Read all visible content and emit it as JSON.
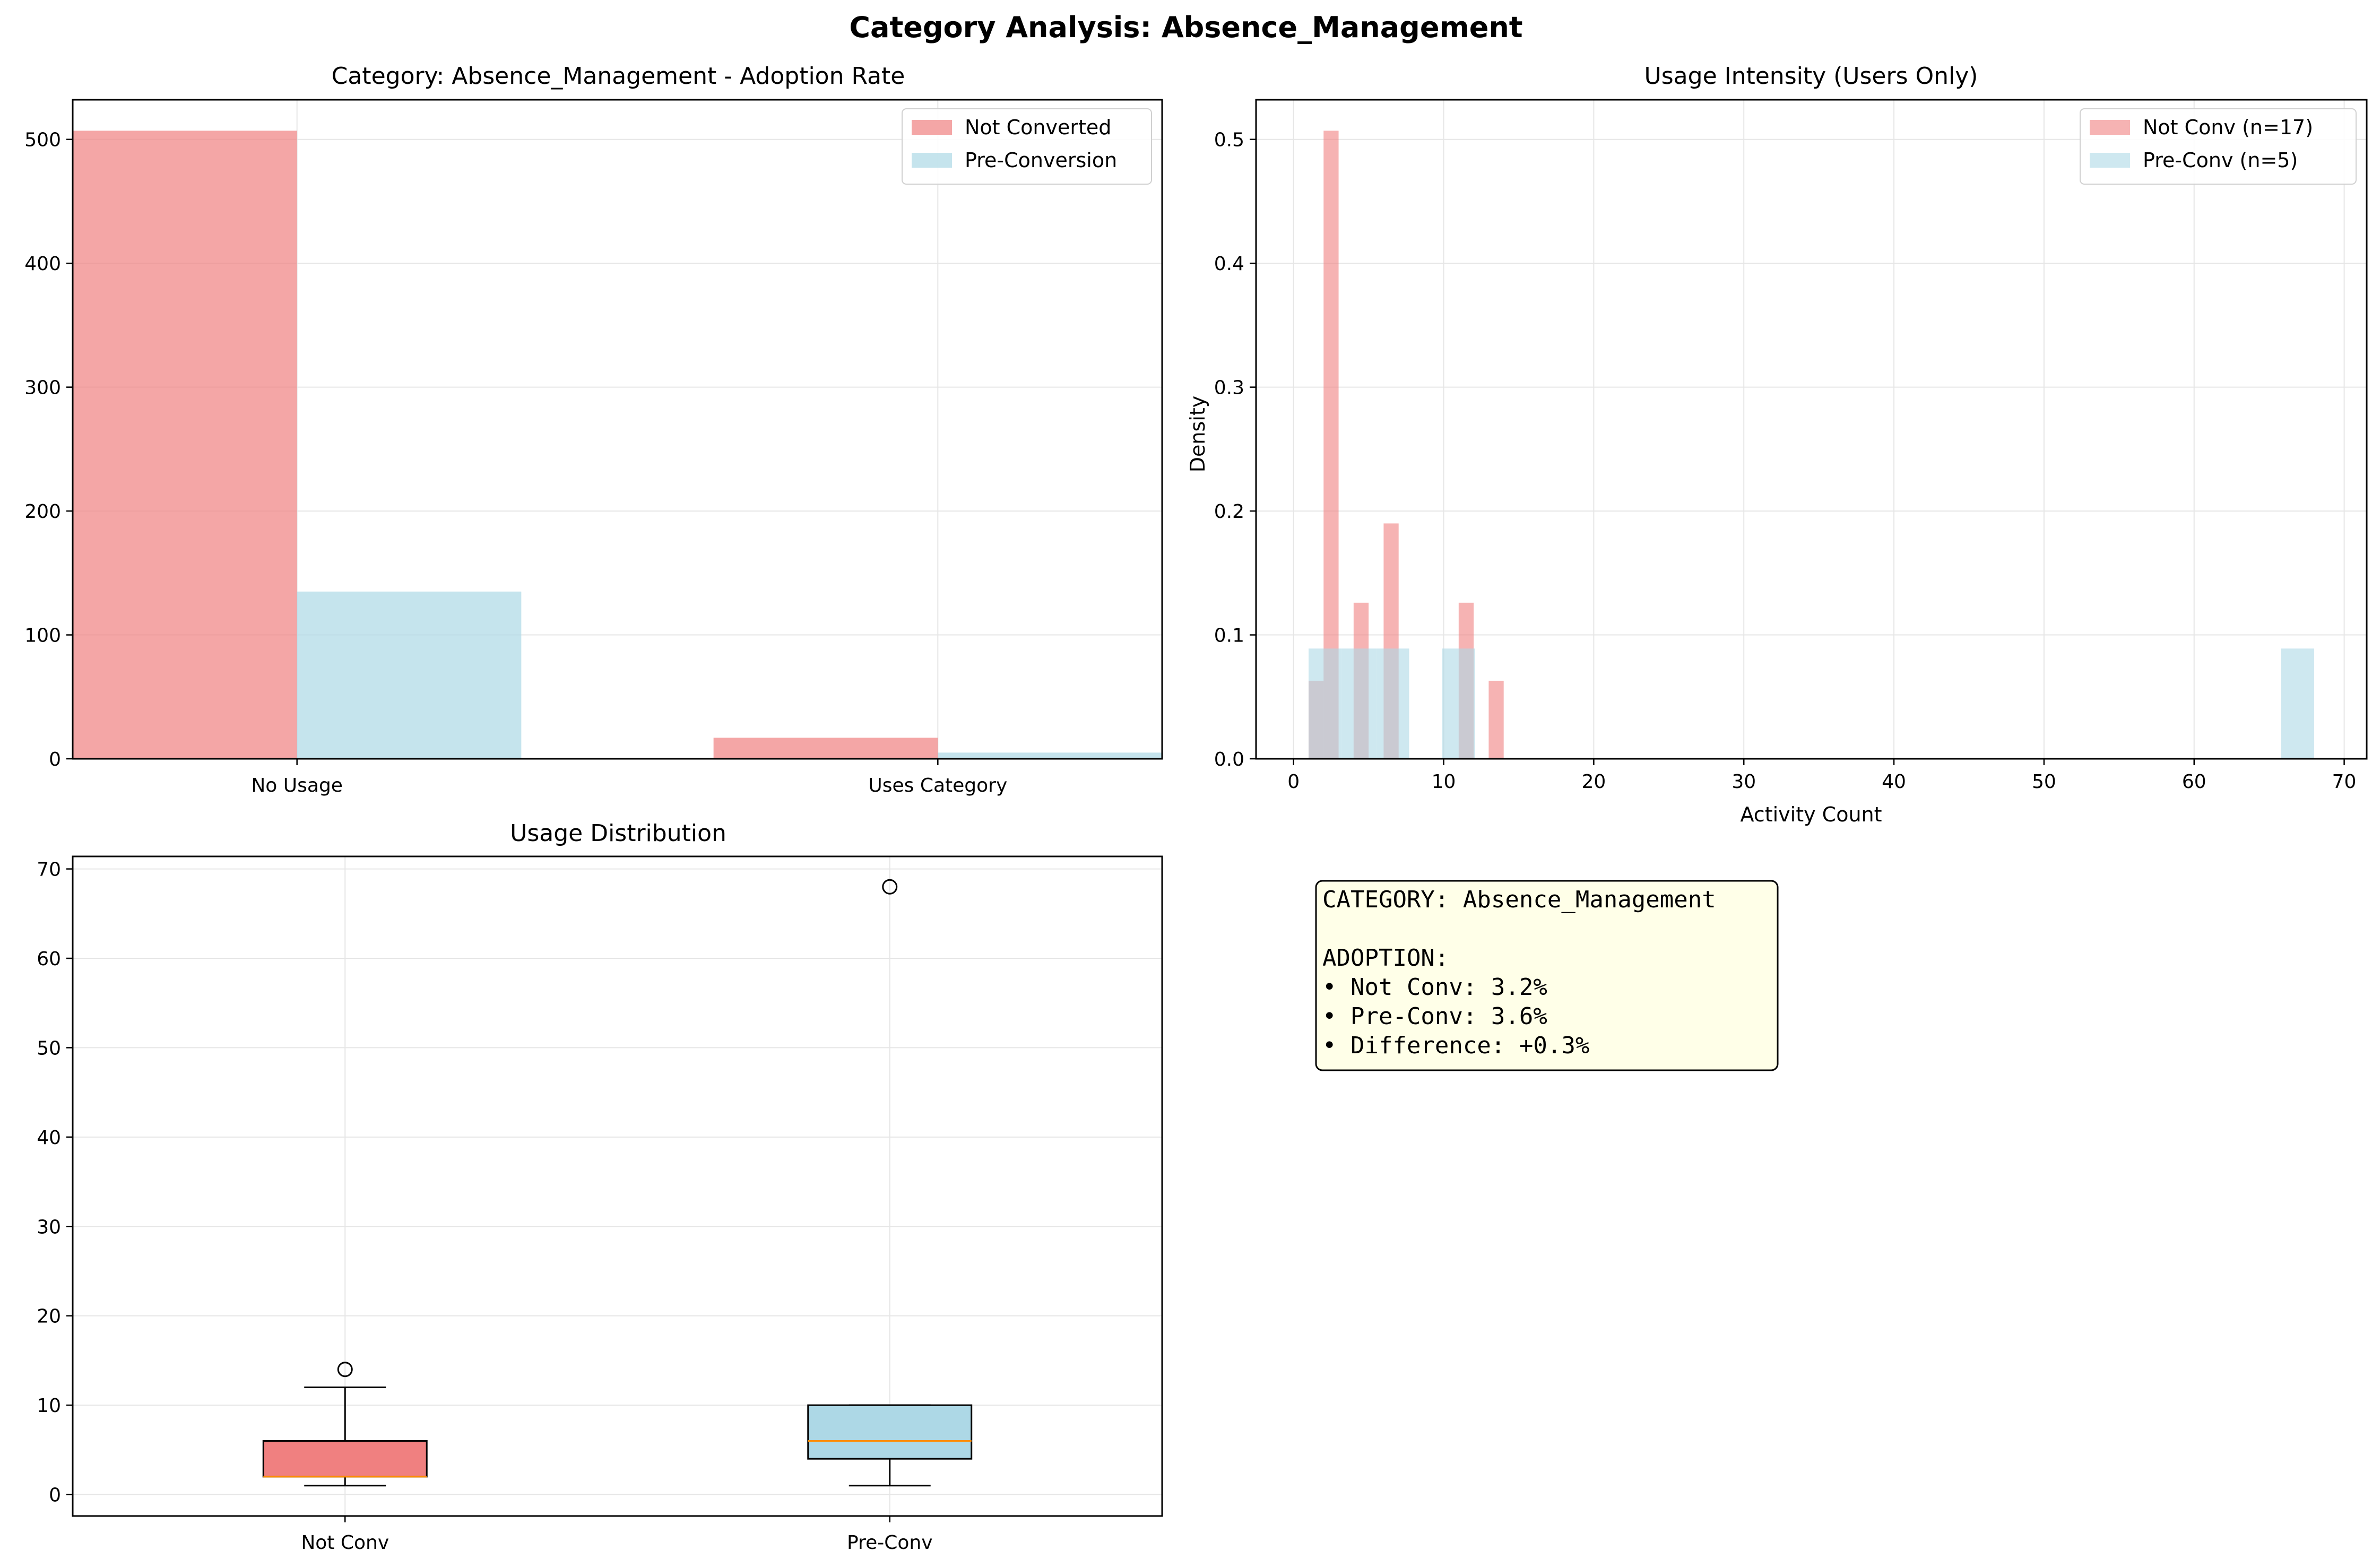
{
  "figure": {
    "suptitle": "Category Analysis: Absence_Management"
  },
  "colors": {
    "not_converted": "#F08080",
    "pre_conversion": "#ADD8E6",
    "median": "#FF8C00",
    "grid": "#e6e6e6",
    "textbox_bg": "#FFFFE8"
  },
  "chart_data": [
    {
      "type": "bar",
      "title": "Category: Absence_Management - Adoption Rate",
      "xlabel": "",
      "ylabel": "",
      "categories": [
        "No Usage",
        "Uses Category"
      ],
      "series": [
        {
          "name": "Not Converted",
          "values": [
            507,
            17
          ]
        },
        {
          "name": "Pre-Conversion",
          "values": [
            135,
            5
          ]
        }
      ],
      "ylim": [
        0,
        532
      ],
      "yticks": [
        0,
        100,
        200,
        300,
        400,
        500
      ],
      "grid": true,
      "legend": "top-right"
    },
    {
      "type": "bar",
      "subtype": "histogram",
      "title": "Usage Intensity (Users Only)",
      "xlabel": "Activity Count",
      "ylabel": "Density",
      "xlim": [
        -2.5,
        71.5
      ],
      "ylim": [
        0,
        0.532
      ],
      "xticks": [
        0,
        10,
        20,
        30,
        40,
        50,
        60,
        70
      ],
      "yticks": [
        0.0,
        0.1,
        0.2,
        0.3,
        0.4,
        0.5
      ],
      "series": [
        {
          "name": "Not Conv (n=17)",
          "bins": [
            [
              1.0,
              2.0,
              0.063
            ],
            [
              2.0,
              3.0,
              0.507
            ],
            [
              4.0,
              5.0,
              0.126
            ],
            [
              6.0,
              7.0,
              0.19
            ],
            [
              11.0,
              12.0,
              0.126
            ],
            [
              13.0,
              14.0,
              0.063
            ]
          ]
        },
        {
          "name": "Pre-Conv (n=5)",
          "bins": [
            [
              1.0,
              3.2,
              0.089
            ],
            [
              3.2,
              5.5,
              0.089
            ],
            [
              5.5,
              7.7,
              0.089
            ],
            [
              9.9,
              12.1,
              0.089
            ],
            [
              65.8,
              68.0,
              0.089
            ]
          ]
        }
      ],
      "grid": true,
      "legend": "top-right"
    },
    {
      "type": "box",
      "title": "Usage Distribution",
      "xlabel": "",
      "ylabel": "",
      "categories": [
        "Not Conv",
        "Pre-Conv"
      ],
      "boxes": [
        {
          "whisker_low": 1,
          "q1": 2,
          "median": 2,
          "q3": 6,
          "whisker_high": 12,
          "outliers": [
            14
          ]
        },
        {
          "whisker_low": 1,
          "q1": 4,
          "median": 6,
          "q3": 10,
          "whisker_high": 10,
          "outliers": [
            68
          ]
        }
      ],
      "ylim": [
        -2.4,
        71.4
      ],
      "yticks": [
        0,
        10,
        20,
        30,
        40,
        50,
        60,
        70
      ],
      "grid": true
    }
  ],
  "summary_box": {
    "lines": [
      "CATEGORY: Absence_Management",
      "",
      "ADOPTION:",
      "• Not Conv: 3.2%",
      "• Pre-Conv: 3.6%",
      "• Difference: +0.3%"
    ]
  }
}
